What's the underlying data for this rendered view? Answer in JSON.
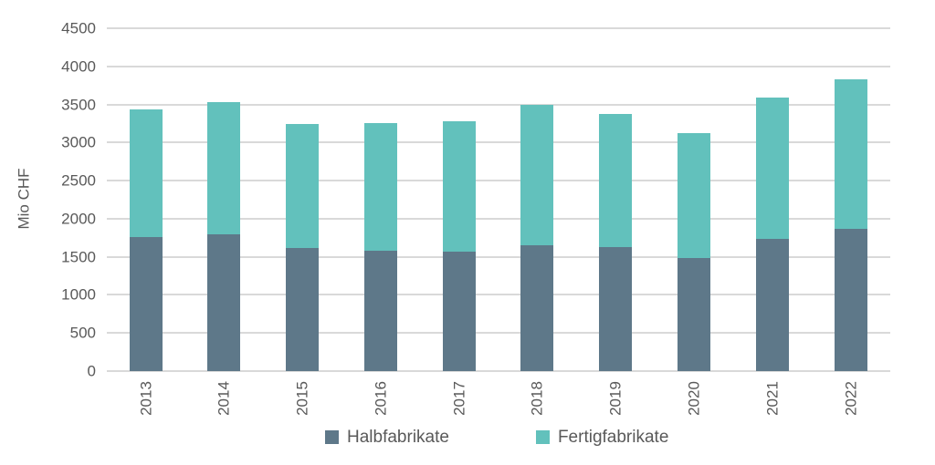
{
  "colors": {
    "background": "#ffffff",
    "gridline": "#d9d9d9",
    "axis_line": "#d9d9d9",
    "text": "#595959",
    "halbfabrikate": "#5e7889",
    "fertigfabrikate": "#62c1bc"
  },
  "chart_data": {
    "type": "bar",
    "stacked": true,
    "title": "",
    "xlabel": "",
    "ylabel": "Mio CHF",
    "categories": [
      "2013",
      "2014",
      "2015",
      "2016",
      "2017",
      "2018",
      "2019",
      "2020",
      "2021",
      "2022"
    ],
    "series": [
      {
        "name": "Halbfabrikate",
        "color": "#5e7889",
        "values": [
          1760,
          1790,
          1620,
          1580,
          1570,
          1650,
          1630,
          1490,
          1730,
          1870
        ]
      },
      {
        "name": "Fertigfabrikate",
        "color": "#62c1bc",
        "values": [
          1680,
          1740,
          1620,
          1680,
          1710,
          1850,
          1750,
          1640,
          1860,
          1960
        ]
      }
    ],
    "totals": [
      3440,
      3530,
      3240,
      3260,
      3280,
      3500,
      3380,
      3130,
      3590,
      3830
    ],
    "ylim": [
      0,
      4500
    ],
    "ytick_step": 500,
    "yticks": [
      0,
      500,
      1000,
      1500,
      2000,
      2500,
      3000,
      3500,
      4000,
      4500
    ],
    "grid": true,
    "legend_position": "bottom",
    "x_tick_rotation": 90
  }
}
